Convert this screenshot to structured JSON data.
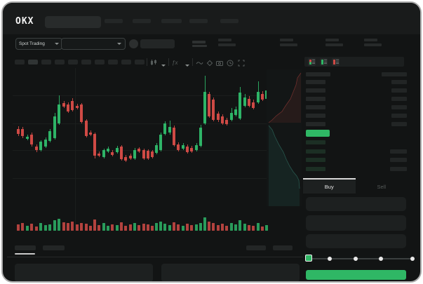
{
  "window": {
    "brand": "OKX"
  },
  "subheader": {
    "market_selector_label": "Spot Trading"
  },
  "toolbar": {
    "icon_names": [
      "chart-type-icon",
      "chevron-down-icon",
      "indicators-icon",
      "chevron-down-icon",
      "line-tool-icon",
      "eraser-icon",
      "camera-icon",
      "history-icon",
      "fullscreen-icon"
    ],
    "timeframe_slots": 10,
    "active_timeframe_index": 1
  },
  "colors": {
    "accent_green": "#2fb765",
    "candle_green": "#2eb467",
    "candle_red": "#cf4a45",
    "bid_row_green": "#1c2f24",
    "tab_indicator": "#d7d7d7",
    "depth_ask_line": "rgba(207,74,69,0.45)",
    "depth_ask_fill": "rgba(207,74,69,0.10)",
    "depth_bid_line": "rgba(62,158,138,0.45)",
    "depth_bid_fill": "rgba(46,140,120,0.12)"
  },
  "order_book": {
    "view_modes": [
      "combined-book",
      "bids-only",
      "asks-only"
    ],
    "header_row": {
      "left_w": 35,
      "right_w": 36
    },
    "asks": [
      {
        "lw": 28,
        "rw": 22
      },
      {
        "lw": 28,
        "rw": 22
      },
      {
        "lw": 28,
        "rw": 22
      },
      {
        "lw": 28,
        "rw": 22
      },
      {
        "lw": 28,
        "rw": 22
      },
      {
        "lw": 28,
        "rw": 22
      }
    ],
    "last_price_highlighted": true,
    "bids": [
      {
        "lw": 28,
        "rw": 0
      },
      {
        "lw": 28,
        "rw": 24
      },
      {
        "lw": 28,
        "rw": 24
      },
      {
        "lw": 28,
        "rw": 24
      }
    ],
    "tabs": {
      "buy": "Buy",
      "sell": "Sell",
      "active": "buy"
    }
  },
  "trade_form": {
    "field_count": 3,
    "slider_stops": 5,
    "slider_value_index": 0
  },
  "chart_data": {
    "type": "candlestick",
    "title": "",
    "xlabel": "",
    "ylabel": "",
    "axis_labels_visible": false,
    "note": "Skeleton trading chart; no numeric price/time labels rendered. Values are pixel positions [x, color(g/r), bodyTopY, bodyBottomY, wickTopY, wickBottomY, volumeHeight] in screen coords.",
    "candles": [
      [
        20,
        "r",
        180,
        187,
        176,
        190,
        9
      ],
      [
        26,
        "r",
        180,
        190,
        177,
        193,
        11
      ],
      [
        33,
        "g",
        191,
        194,
        188,
        196,
        7
      ],
      [
        39,
        "r",
        188,
        202,
        185,
        205,
        10
      ],
      [
        46,
        "r",
        205,
        210,
        202,
        213,
        6
      ],
      [
        52,
        "g",
        198,
        210,
        196,
        212,
        11
      ],
      [
        59,
        "g",
        195,
        205,
        192,
        207,
        8
      ],
      [
        65,
        "g",
        183,
        197,
        180,
        199,
        9
      ],
      [
        72,
        "g",
        162,
        193,
        157,
        195,
        15
      ],
      [
        78,
        "g",
        145,
        172,
        132,
        174,
        17
      ],
      [
        85,
        "r",
        143,
        148,
        140,
        150,
        12
      ],
      [
        91,
        "r",
        145,
        155,
        142,
        157,
        11
      ],
      [
        97,
        "r",
        140,
        153,
        136,
        155,
        13
      ],
      [
        104,
        "r",
        147,
        150,
        144,
        152,
        9
      ],
      [
        110,
        "r",
        145,
        170,
        143,
        172,
        11
      ],
      [
        117,
        "r",
        168,
        190,
        166,
        192,
        10
      ],
      [
        123,
        "r",
        185,
        188,
        182,
        190,
        7
      ],
      [
        129,
        "r",
        187,
        218,
        185,
        222,
        16
      ],
      [
        135,
        "r",
        215,
        218,
        212,
        220,
        8
      ],
      [
        142,
        "g",
        210,
        220,
        208,
        222,
        11
      ],
      [
        148,
        "g",
        208,
        212,
        205,
        214,
        7
      ],
      [
        154,
        "r",
        213,
        217,
        210,
        219,
        9
      ],
      [
        161,
        "g",
        207,
        213,
        204,
        215,
        8
      ],
      [
        167,
        "r",
        205,
        223,
        203,
        225,
        12
      ],
      [
        173,
        "r",
        220,
        225,
        217,
        227,
        7
      ],
      [
        180,
        "r",
        218,
        222,
        215,
        224,
        9
      ],
      [
        186,
        "g",
        210,
        222,
        207,
        224,
        11
      ],
      [
        192,
        "r",
        208,
        212,
        206,
        214,
        8
      ],
      [
        199,
        "r",
        210,
        222,
        208,
        224,
        10
      ],
      [
        205,
        "r",
        211,
        222,
        209,
        224,
        9
      ],
      [
        211,
        "r",
        212,
        220,
        210,
        222,
        7
      ],
      [
        217,
        "g",
        203,
        214,
        200,
        216,
        11
      ],
      [
        223,
        "g",
        188,
        210,
        185,
        212,
        13
      ],
      [
        229,
        "g",
        172,
        187,
        169,
        189,
        10
      ],
      [
        236,
        "g",
        177,
        185,
        168,
        188,
        8
      ],
      [
        242,
        "r",
        178,
        203,
        175,
        205,
        12
      ],
      [
        248,
        "r",
        202,
        210,
        199,
        212,
        9
      ],
      [
        255,
        "g",
        203,
        208,
        200,
        210,
        7
      ],
      [
        261,
        "r",
        205,
        213,
        202,
        215,
        10
      ],
      [
        267,
        "r",
        207,
        212,
        204,
        214,
        8
      ],
      [
        274,
        "g",
        203,
        210,
        200,
        212,
        9
      ],
      [
        280,
        "g",
        178,
        204,
        174,
        206,
        11
      ],
      [
        286,
        "g",
        127,
        172,
        104,
        174,
        19
      ],
      [
        292,
        "r",
        130,
        162,
        127,
        164,
        13
      ],
      [
        298,
        "r",
        138,
        167,
        135,
        169,
        11
      ],
      [
        305,
        "r",
        158,
        167,
        155,
        170,
        8
      ],
      [
        311,
        "r",
        162,
        172,
        159,
        174,
        10
      ],
      [
        317,
        "r",
        167,
        173,
        164,
        175,
        7
      ],
      [
        324,
        "g",
        157,
        167,
        150,
        169,
        11
      ],
      [
        330,
        "g",
        152,
        160,
        148,
        162,
        9
      ],
      [
        336,
        "g",
        128,
        165,
        120,
        167,
        15
      ],
      [
        343,
        "g",
        135,
        147,
        130,
        149,
        10
      ],
      [
        349,
        "r",
        137,
        147,
        133,
        149,
        8
      ],
      [
        355,
        "r",
        142,
        150,
        138,
        152,
        7
      ],
      [
        362,
        "g",
        127,
        142,
        112,
        144,
        11
      ],
      [
        368,
        "r",
        130,
        138,
        126,
        140,
        6
      ],
      [
        374,
        "g",
        125,
        137,
        120,
        139,
        8
      ]
    ],
    "depth": {
      "asks_line": [
        [
          49,
          5
        ],
        [
          44,
          12
        ],
        [
          42,
          22
        ],
        [
          38,
          32
        ],
        [
          34,
          42
        ],
        [
          27,
          52
        ],
        [
          22,
          60
        ],
        [
          14,
          66
        ],
        [
          8,
          72
        ],
        [
          3,
          76
        ]
      ],
      "bids_line": [
        [
          3,
          80
        ],
        [
          8,
          86
        ],
        [
          12,
          96
        ],
        [
          18,
          108
        ],
        [
          24,
          118
        ],
        [
          28,
          128
        ],
        [
          33,
          138
        ],
        [
          38,
          146
        ],
        [
          43,
          152
        ],
        [
          46,
          158
        ],
        [
          47,
          170
        ]
      ]
    }
  }
}
